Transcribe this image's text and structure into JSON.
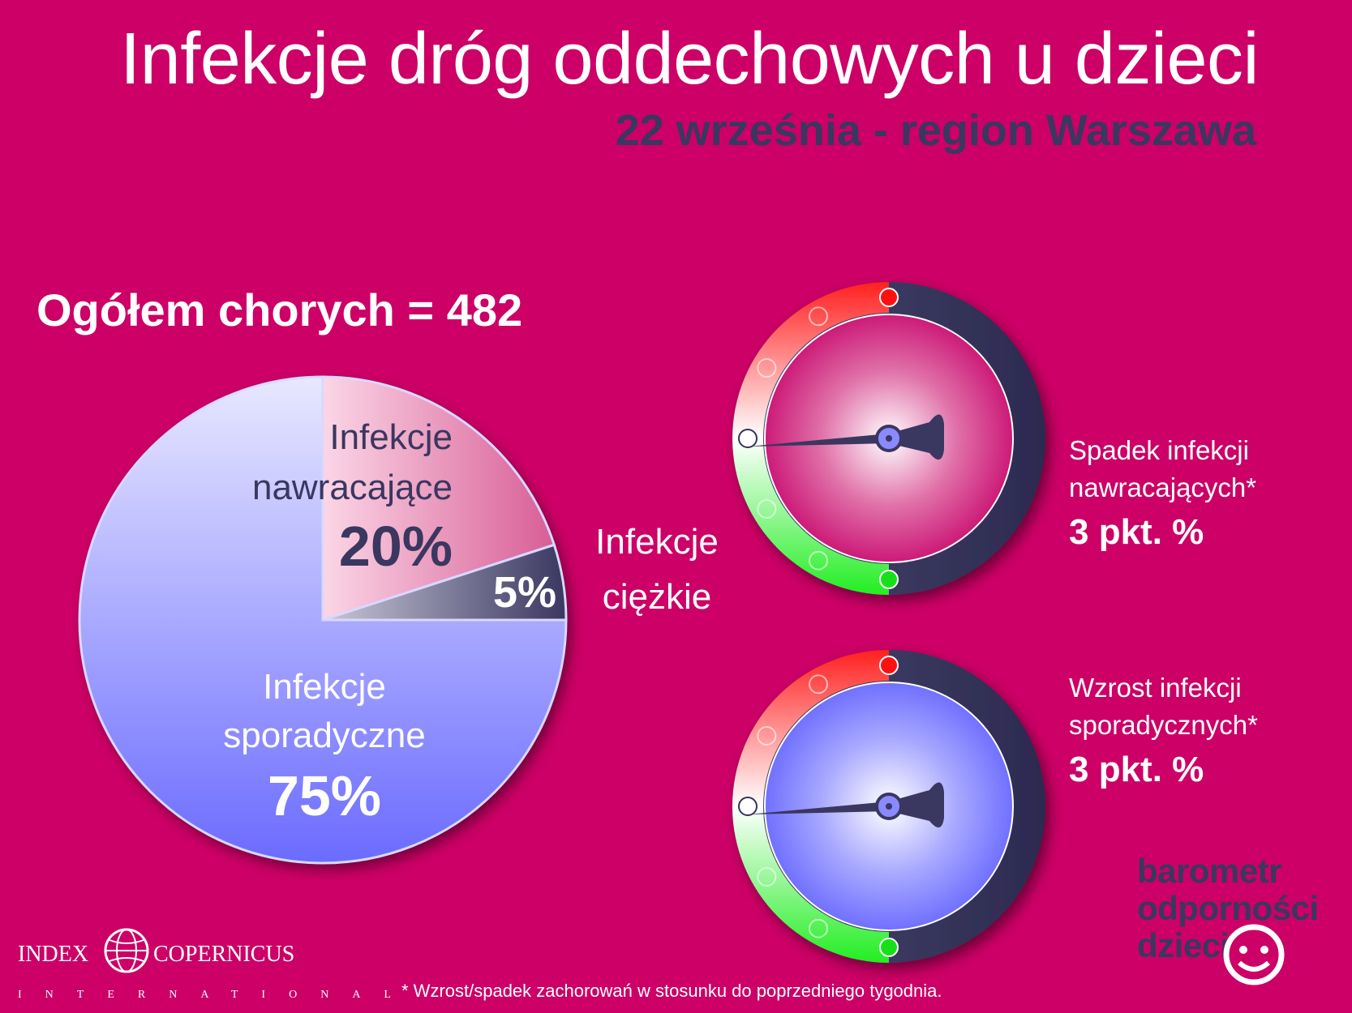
{
  "title": "Infekcje dróg oddechowych u dzieci",
  "subtitle": "22 września - region Warszawa",
  "total_label": "Ogółem chorych = 482",
  "severe_caption": [
    "Infekcje",
    "ciężkie"
  ],
  "chart_data": {
    "type": "pie",
    "slices": [
      {
        "label": "Infekcje nawracające",
        "value": 20,
        "display": "20%",
        "color": "#e07aa8"
      },
      {
        "label": "Infekcje ciężkie",
        "value": 5,
        "display": "5%",
        "color": "#3a3760"
      },
      {
        "label": "Infekcje sporadyczne",
        "value": 75,
        "display": "75%",
        "color": "#8c8cff"
      }
    ]
  },
  "pie_labels": {
    "recurring": [
      "Infekcje",
      "nawracające",
      "20%"
    ],
    "severe": "5%",
    "sporadic": [
      "Infekcje",
      "sporadyczne",
      "75%"
    ]
  },
  "gauges": [
    {
      "line1": "Spadek infekcji",
      "line2": "nawracających*",
      "value": "3 pkt. %",
      "needle": "3 pkt. %",
      "face_color": "#cc1a78"
    },
    {
      "line1": "Wzrost infekcji",
      "line2": "sporadycznych*",
      "value": "3 pkt. %",
      "needle": "3 pkt. %",
      "face_color": "#8080ff"
    }
  ],
  "brand": [
    "barometr",
    "odporności",
    "dzieci"
  ],
  "logo": {
    "left": "INDEX",
    "right": "COPERNICUS",
    "sub": "INTERNATIONAL"
  },
  "footnote": "* Wzrost/spadek zachorowań w stosunku do poprzedniego tygodnia."
}
